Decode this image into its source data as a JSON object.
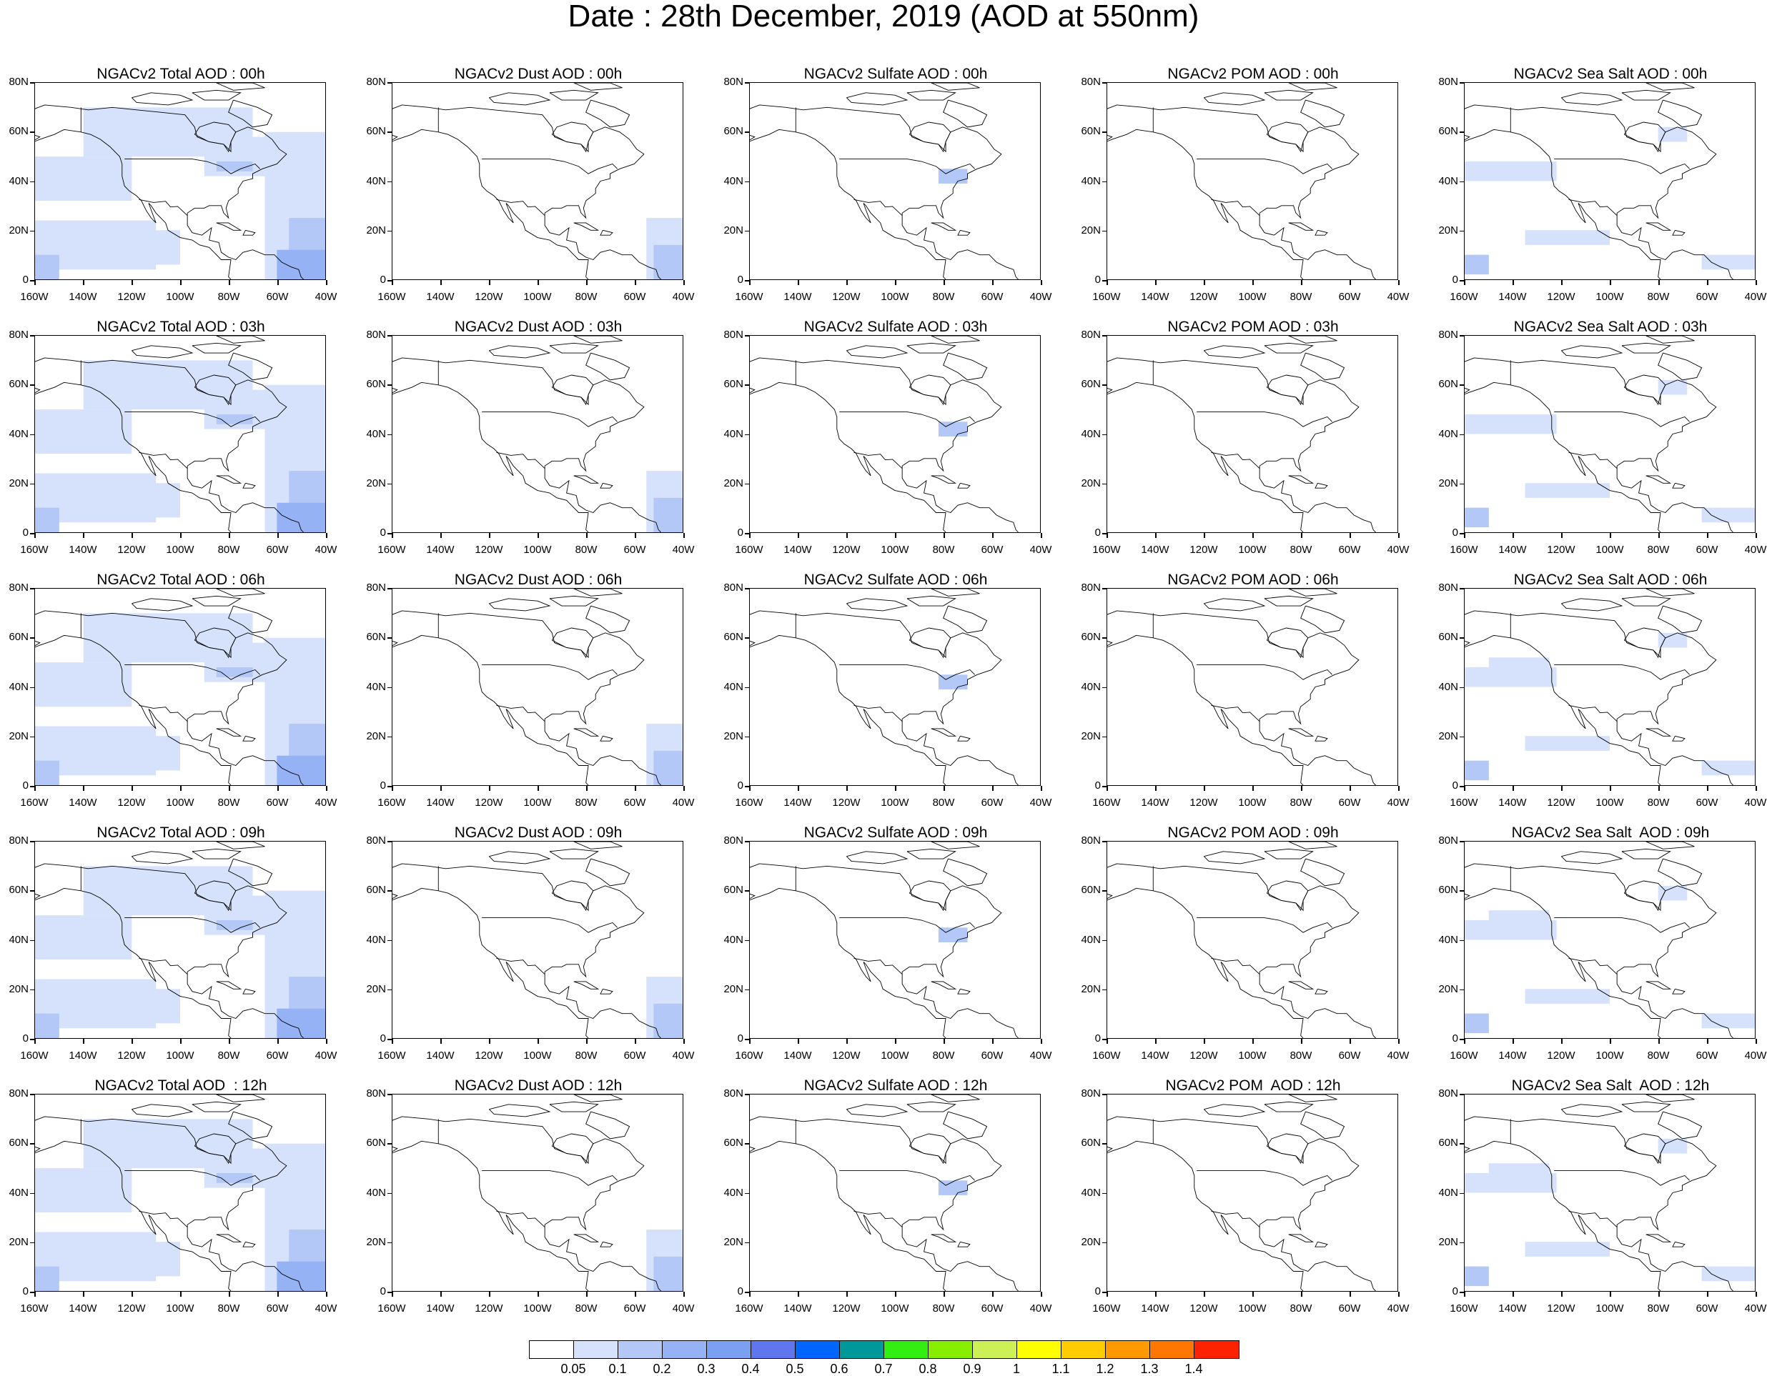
{
  "title": "Date : 28th December, 2019 (AOD at 550nm)",
  "panel_titles": [
    [
      "NGACv2 Total AOD : 00h",
      "NGACv2 Dust AOD : 00h",
      "NGACv2 Sulfate AOD : 00h",
      "NGACv2 POM AOD : 00h",
      "NGACv2 Sea Salt AOD : 00h"
    ],
    [
      "NGACv2 Total AOD : 03h",
      "NGACv2 Dust AOD : 03h",
      "NGACv2 Sulfate AOD : 03h",
      "NGACv2 POM AOD : 03h",
      "NGACv2 Sea Salt AOD : 03h"
    ],
    [
      "NGACv2 Total AOD : 06h",
      "NGACv2 Dust AOD : 06h",
      "NGACv2 Sulfate AOD : 06h",
      "NGACv2 POM AOD : 06h",
      "NGACv2 Sea Salt AOD : 06h"
    ],
    [
      "NGACv2 Total AOD : 09h",
      "NGACv2 Dust AOD : 09h",
      "NGACv2 Sulfate AOD : 09h",
      "NGACv2 POM AOD : 09h",
      "NGACv2 Sea Salt  AOD : 09h"
    ],
    [
      "NGACv2 Total AOD  : 12h",
      "NGACv2 Dust AOD : 12h",
      "NGACv2 Sulfate AOD : 12h",
      "NGACv2 POM  AOD : 12h",
      "NGACv2 Sea Salt  AOD : 12h"
    ]
  ],
  "y_ticks": [
    "80N",
    "60N",
    "40N",
    "20N",
    "0"
  ],
  "x_ticks": [
    "160W",
    "140W",
    "120W",
    "100W",
    "80W",
    "60W",
    "40W"
  ],
  "colorbar": {
    "labels": [
      "0.05",
      "0.1",
      "0.2",
      "0.3",
      "0.4",
      "0.5",
      "0.6",
      "0.7",
      "0.8",
      "0.9",
      "1",
      "1.1",
      "1.2",
      "1.3",
      "1.4"
    ],
    "colors": [
      "#ffffff",
      "#d6e2fb",
      "#b3c8f7",
      "#94b2f4",
      "#7ba0f2",
      "#6076ee",
      "#0066ff",
      "#009999",
      "#33ee11",
      "#88ee00",
      "#ccf055",
      "#ffff00",
      "#ffcc00",
      "#ff9900",
      "#ff7700",
      "#ff2200"
    ]
  }
}
